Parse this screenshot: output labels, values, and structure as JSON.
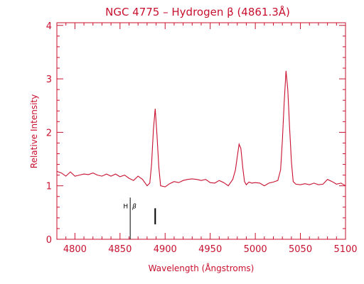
{
  "colors": {
    "plot": "#c8102e",
    "marker": "#000000",
    "background": "#ffffff"
  },
  "chart_data": {
    "type": "line",
    "title": "NGC 4775 – Hydrogen β (4861.3Å)",
    "xlabel": "Wavelength (Ångstroms)",
    "ylabel": "Relative Intensity",
    "xlim": [
      4780,
      5100
    ],
    "ylim": [
      0,
      4.05
    ],
    "xticks": [
      4800,
      4850,
      4900,
      4950,
      5000,
      5050,
      5100
    ],
    "yticks": [
      0,
      1,
      2,
      3,
      4
    ],
    "grid": false,
    "series": [
      {
        "x": [
          4780,
          4785,
          4790,
          4795,
          4800,
          4805,
          4810,
          4815,
          4820,
          4825,
          4830,
          4835,
          4840,
          4845,
          4850,
          4855,
          4860,
          4865,
          4870,
          4875,
          4880,
          4883,
          4885,
          4887,
          4889,
          4891,
          4893,
          4895,
          4900,
          4905,
          4910,
          4915,
          4920,
          4925,
          4930,
          4935,
          4940,
          4945,
          4950,
          4955,
          4960,
          4965,
          4970,
          4975,
          4978,
          4980,
          4982,
          4984,
          4986,
          4988,
          4990,
          4993,
          4996,
          5000,
          5005,
          5010,
          5015,
          5020,
          5025,
          5028,
          5030,
          5032,
          5034,
          5036,
          5038,
          5040,
          5042,
          5045,
          5050,
          5055,
          5060,
          5065,
          5070,
          5075,
          5080,
          5085,
          5090,
          5095,
          5100
        ],
        "values": [
          1.27,
          1.24,
          1.18,
          1.26,
          1.18,
          1.2,
          1.22,
          1.21,
          1.24,
          1.2,
          1.18,
          1.22,
          1.18,
          1.22,
          1.17,
          1.2,
          1.14,
          1.1,
          1.18,
          1.12,
          1.0,
          1.05,
          1.4,
          2.05,
          2.44,
          1.95,
          1.35,
          1.0,
          0.98,
          1.04,
          1.08,
          1.06,
          1.1,
          1.12,
          1.13,
          1.12,
          1.1,
          1.12,
          1.06,
          1.05,
          1.1,
          1.06,
          1.0,
          1.12,
          1.3,
          1.55,
          1.78,
          1.7,
          1.35,
          1.08,
          1.02,
          1.07,
          1.05,
          1.06,
          1.05,
          1.0,
          1.05,
          1.07,
          1.1,
          1.3,
          1.85,
          2.55,
          3.15,
          2.8,
          2.1,
          1.45,
          1.08,
          1.03,
          1.02,
          1.04,
          1.02,
          1.05,
          1.02,
          1.03,
          1.12,
          1.08,
          1.03,
          1.05,
          1.0
        ]
      }
    ],
    "annotations": [
      {
        "label": "H",
        "symbol": "β",
        "x": 4861.3,
        "y_bottom": 0,
        "y_top": 0.78
      },
      {
        "x": 4889,
        "y_bottom": 0.28,
        "y_top": 0.58
      }
    ]
  }
}
